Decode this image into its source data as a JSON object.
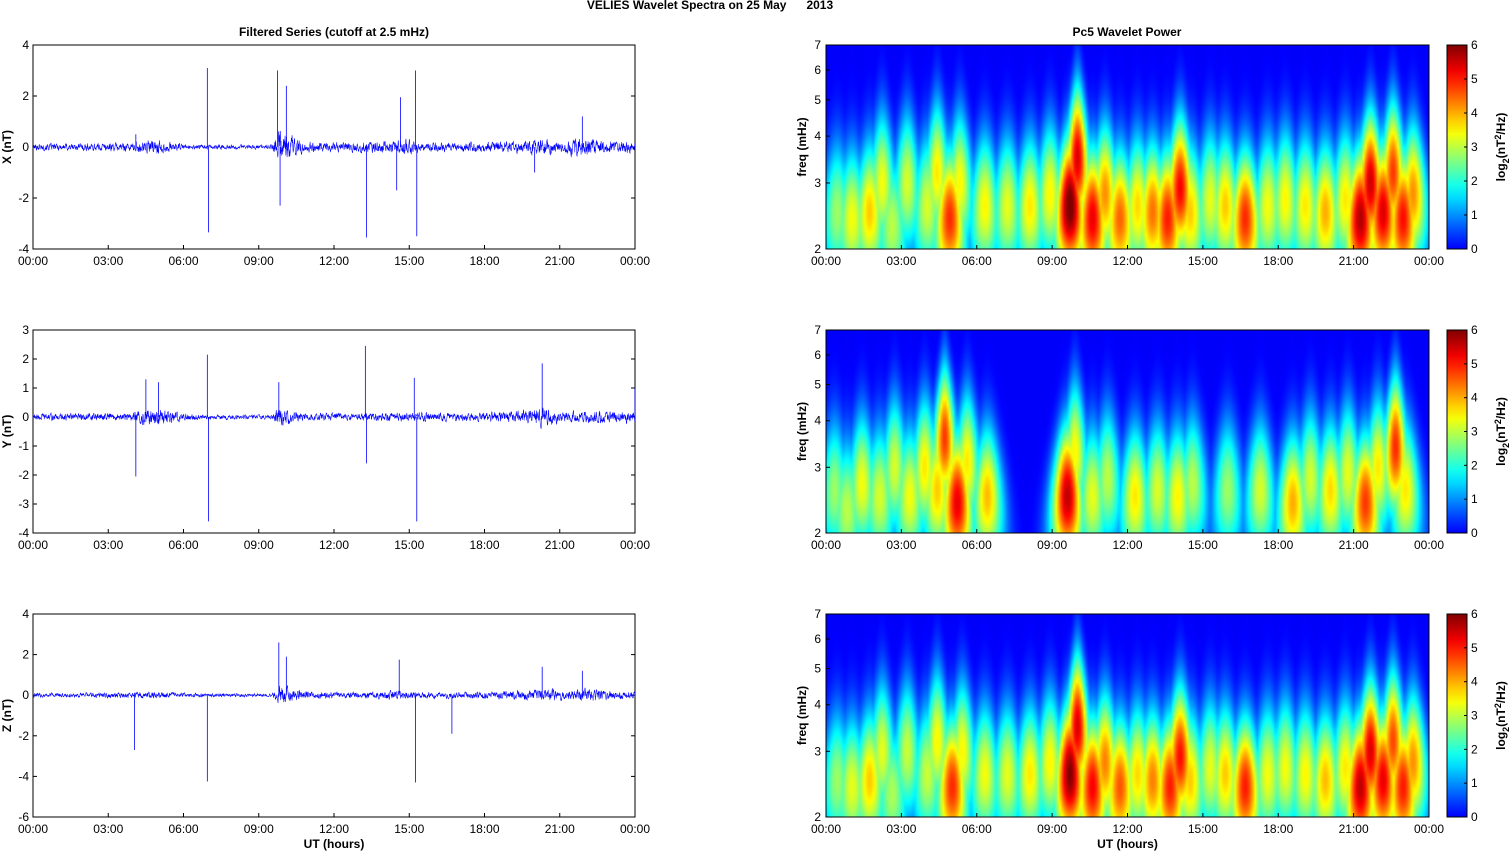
{
  "figure": {
    "title": "VELIES Wavelet Spectra on 25 May      2013",
    "left_title": "Filtered Series (cutoff at 2.5 mHz)",
    "right_title": "Pc5 Wavelet Power",
    "xlabel": "UT (hours)",
    "freq_label": "freq (mHz)",
    "colorbar_label": "log2(nT2/Hz)",
    "colorbar_label_parts": {
      "base": "log",
      "sub": "2",
      "open": "(nT",
      "sup": "2",
      "close": "/Hz)"
    },
    "colors": {
      "trace": "#0000ff",
      "background": "#00008f"
    }
  },
  "chart_data": [
    {
      "type": "line",
      "title": "Filtered Series (cutoff at 2.5 mHz)",
      "ylabel": "X (nT)",
      "xlabel": "",
      "x_ticks": [
        "00:00",
        "03:00",
        "06:00",
        "09:00",
        "12:00",
        "15:00",
        "18:00",
        "21:00",
        "00:00"
      ],
      "xlim": [
        0,
        24
      ],
      "ylim": [
        -4,
        4
      ],
      "y_ticks": [
        -4,
        -2,
        0,
        2,
        4
      ],
      "base_amplitude": 0.15,
      "activity": [
        [
          0,
          0.9
        ],
        [
          4,
          1.2
        ],
        [
          4.8,
          2.2
        ],
        [
          5.5,
          1.2
        ],
        [
          6.3,
          0.6
        ],
        [
          9.5,
          0.6
        ],
        [
          9.8,
          4.5
        ],
        [
          10.2,
          3.5
        ],
        [
          10.8,
          1.4
        ],
        [
          12,
          1.2
        ],
        [
          14,
          1.6
        ],
        [
          14.8,
          2.2
        ],
        [
          15.5,
          1.2
        ],
        [
          18,
          1.3
        ],
        [
          19.5,
          1.6
        ],
        [
          20.3,
          2.3
        ],
        [
          21,
          1.5
        ],
        [
          21.8,
          2.8
        ],
        [
          22.5,
          1.8
        ],
        [
          23.5,
          1.6
        ],
        [
          24,
          1.5
        ]
      ],
      "spikes": [
        [
          4.1,
          0.5
        ],
        [
          6.95,
          3.1
        ],
        [
          7.0,
          -3.35
        ],
        [
          9.75,
          3.0
        ],
        [
          9.85,
          -2.3
        ],
        [
          10.1,
          2.4
        ],
        [
          13.3,
          -3.55
        ],
        [
          14.5,
          -1.7
        ],
        [
          14.65,
          1.95
        ],
        [
          15.25,
          3.0
        ],
        [
          15.3,
          -3.5
        ],
        [
          20,
          -1.0
        ],
        [
          21.9,
          1.2
        ]
      ]
    },
    {
      "type": "line",
      "title": "",
      "ylabel": "Y (nT)",
      "xlabel": "",
      "x_ticks": [
        "00:00",
        "03:00",
        "06:00",
        "09:00",
        "12:00",
        "15:00",
        "18:00",
        "21:00",
        "00:00"
      ],
      "xlim": [
        0,
        24
      ],
      "ylim": [
        -4,
        3
      ],
      "y_ticks": [
        -4,
        -3,
        -2,
        -1,
        0,
        1,
        2,
        3
      ],
      "base_amplitude": 0.12,
      "activity": [
        [
          0,
          1.0
        ],
        [
          3.8,
          1.1
        ],
        [
          4.5,
          2.5
        ],
        [
          5.2,
          2.2
        ],
        [
          6,
          1.2
        ],
        [
          6.6,
          0.7
        ],
        [
          9.5,
          0.6
        ],
        [
          9.8,
          2.8
        ],
        [
          10.3,
          1.8
        ],
        [
          11,
          1.0
        ],
        [
          13,
          1.2
        ],
        [
          15,
          1.4
        ],
        [
          17,
          1.1
        ],
        [
          19.5,
          1.8
        ],
        [
          20.3,
          2.8
        ],
        [
          21,
          1.5
        ],
        [
          22.5,
          1.8
        ],
        [
          24,
          1.6
        ]
      ],
      "spikes": [
        [
          4.1,
          -2.05
        ],
        [
          4.5,
          1.3
        ],
        [
          5.0,
          1.2
        ],
        [
          6.95,
          2.15
        ],
        [
          7.0,
          -3.6
        ],
        [
          9.8,
          1.2
        ],
        [
          13.25,
          2.45
        ],
        [
          13.3,
          -1.6
        ],
        [
          15.2,
          1.35
        ],
        [
          15.3,
          -3.6
        ],
        [
          20.3,
          1.85
        ],
        [
          24,
          1.0
        ]
      ]
    },
    {
      "type": "line",
      "title": "",
      "ylabel": "Z (nT)",
      "xlabel": "UT (hours)",
      "x_ticks": [
        "00:00",
        "03:00",
        "06:00",
        "09:00",
        "12:00",
        "15:00",
        "18:00",
        "21:00",
        "00:00"
      ],
      "xlim": [
        0,
        24
      ],
      "ylim": [
        -6,
        4
      ],
      "y_ticks": [
        -6,
        -4,
        -2,
        0,
        2,
        4
      ],
      "base_amplitude": 0.12,
      "activity": [
        [
          0,
          1.0
        ],
        [
          4,
          1.2
        ],
        [
          5,
          1.5
        ],
        [
          6.5,
          0.8
        ],
        [
          9.5,
          0.7
        ],
        [
          9.85,
          4.0
        ],
        [
          10.3,
          2.8
        ],
        [
          11,
          1.4
        ],
        [
          13,
          1.2
        ],
        [
          14.5,
          2.0
        ],
        [
          15.5,
          1.2
        ],
        [
          17,
          1.3
        ],
        [
          19.5,
          1.8
        ],
        [
          20.5,
          2.6
        ],
        [
          21.5,
          1.8
        ],
        [
          22,
          3.0
        ],
        [
          22.8,
          2.0
        ],
        [
          24,
          1.6
        ]
      ],
      "spikes": [
        [
          4.05,
          -2.7
        ],
        [
          6.95,
          -4.25
        ],
        [
          9.8,
          2.6
        ],
        [
          10.1,
          1.9
        ],
        [
          14.6,
          1.75
        ],
        [
          15.25,
          -4.3
        ],
        [
          16.7,
          -1.9
        ],
        [
          20.3,
          1.4
        ],
        [
          21.9,
          1.2
        ]
      ]
    },
    {
      "type": "heatmap",
      "title": "Pc5 Wavelet Power",
      "ylabel": "freq (mHz)",
      "xlabel": "",
      "x_ticks": [
        "00:00",
        "03:00",
        "06:00",
        "09:00",
        "12:00",
        "15:00",
        "18:00",
        "21:00",
        "00:00"
      ],
      "xlim": [
        0,
        24
      ],
      "ylim": [
        2,
        7
      ],
      "y_scale": "log",
      "y_ticks": [
        2,
        3,
        4,
        5,
        6,
        7
      ],
      "colorbar": {
        "label": "log2(nT2/Hz)",
        "min": 0,
        "max": 6,
        "ticks": [
          0,
          1,
          2,
          3,
          4,
          5,
          6
        ],
        "colormap": "jet"
      },
      "blobs": [
        [
          0.4,
          2.5,
          2.8
        ],
        [
          1.0,
          2.4,
          3.4
        ],
        [
          1.7,
          2.5,
          3.8
        ],
        [
          2.2,
          3.0,
          3.4
        ],
        [
          2.6,
          2.3,
          3.0
        ],
        [
          3.2,
          3.0,
          3.2
        ],
        [
          4.0,
          2.6,
          3.2
        ],
        [
          4.4,
          3.2,
          3.6
        ],
        [
          4.9,
          2.4,
          4.9
        ],
        [
          5.3,
          3.0,
          3.5
        ],
        [
          6.3,
          2.6,
          3.5
        ],
        [
          7.2,
          2.6,
          3.3
        ],
        [
          8.1,
          2.6,
          3.6
        ],
        [
          8.9,
          2.8,
          3.5
        ],
        [
          9.7,
          2.6,
          6.2
        ],
        [
          10.0,
          3.5,
          5.4
        ],
        [
          10.6,
          2.4,
          5.3
        ],
        [
          11.1,
          2.8,
          4.2
        ],
        [
          11.7,
          2.4,
          4.5
        ],
        [
          12.4,
          2.6,
          3.7
        ],
        [
          13.0,
          2.5,
          4.4
        ],
        [
          13.6,
          2.4,
          5.0
        ],
        [
          14.1,
          2.9,
          5.2
        ],
        [
          14.5,
          2.5,
          3.8
        ],
        [
          15.3,
          2.7,
          3.3
        ],
        [
          15.9,
          2.6,
          3.8
        ],
        [
          16.7,
          2.4,
          4.9
        ],
        [
          17.6,
          2.6,
          3.4
        ],
        [
          18.3,
          2.7,
          3.5
        ],
        [
          19.1,
          2.6,
          3.6
        ],
        [
          19.9,
          2.5,
          4.0
        ],
        [
          20.7,
          2.7,
          3.6
        ],
        [
          21.3,
          2.4,
          5.7
        ],
        [
          21.7,
          3.0,
          5.5
        ],
        [
          22.2,
          2.5,
          5.4
        ],
        [
          22.6,
          3.2,
          4.8
        ],
        [
          23.0,
          2.4,
          5.1
        ],
        [
          23.4,
          2.8,
          4.2
        ]
      ]
    },
    {
      "type": "heatmap",
      "title": "",
      "ylabel": "freq (mHz)",
      "xlabel": "",
      "x_ticks": [
        "00:00",
        "03:00",
        "06:00",
        "09:00",
        "12:00",
        "15:00",
        "18:00",
        "21:00",
        "00:00"
      ],
      "xlim": [
        0,
        24
      ],
      "ylim": [
        2,
        7
      ],
      "y_scale": "log",
      "y_ticks": [
        2,
        3,
        4,
        5,
        6,
        7
      ],
      "colorbar": {
        "label": "log2(nT2/Hz)",
        "min": 0,
        "max": 6,
        "ticks": [
          0,
          1,
          2,
          3,
          4,
          5,
          6
        ],
        "colormap": "jet"
      },
      "blobs": [
        [
          0.3,
          2.6,
          2.8
        ],
        [
          0.8,
          2.3,
          3.0
        ],
        [
          1.4,
          2.7,
          3.4
        ],
        [
          2.1,
          2.5,
          3.2
        ],
        [
          2.7,
          3.0,
          3.2
        ],
        [
          3.3,
          2.5,
          3.4
        ],
        [
          3.9,
          3.0,
          3.6
        ],
        [
          4.4,
          2.6,
          3.8
        ],
        [
          4.7,
          3.6,
          4.8
        ],
        [
          5.2,
          2.4,
          5.3
        ],
        [
          5.6,
          3.1,
          3.6
        ],
        [
          6.4,
          2.5,
          3.9
        ],
        [
          9.6,
          2.5,
          5.6
        ],
        [
          9.9,
          3.3,
          3.5
        ],
        [
          10.6,
          2.5,
          3.3
        ],
        [
          11.2,
          2.8,
          3.0
        ],
        [
          12.3,
          2.5,
          3.6
        ],
        [
          13.2,
          2.6,
          3.2
        ],
        [
          14.0,
          2.5,
          3.5
        ],
        [
          14.6,
          2.7,
          3.0
        ],
        [
          16.0,
          2.6,
          2.8
        ],
        [
          17.3,
          2.6,
          3.2
        ],
        [
          18.6,
          2.4,
          4.0
        ],
        [
          19.3,
          2.8,
          3.2
        ],
        [
          20.1,
          2.6,
          3.7
        ],
        [
          20.8,
          2.9,
          3.3
        ],
        [
          21.5,
          2.4,
          4.8
        ],
        [
          22.0,
          3.0,
          3.6
        ],
        [
          22.7,
          3.4,
          4.9
        ],
        [
          23.1,
          2.6,
          3.6
        ]
      ]
    },
    {
      "type": "heatmap",
      "title": "",
      "ylabel": "freq (mHz)",
      "xlabel": "UT (hours)",
      "x_ticks": [
        "00:00",
        "03:00",
        "06:00",
        "09:00",
        "12:00",
        "15:00",
        "18:00",
        "21:00",
        "00:00"
      ],
      "xlim": [
        0,
        24
      ],
      "ylim": [
        2,
        7
      ],
      "y_scale": "log",
      "y_ticks": [
        2,
        3,
        4,
        5,
        6,
        7
      ],
      "colorbar": {
        "label": "log2(nT2/Hz)",
        "min": 0,
        "max": 6,
        "ticks": [
          0,
          1,
          2,
          3,
          4,
          5,
          6
        ],
        "colormap": "jet"
      },
      "blobs": [
        [
          0.4,
          2.5,
          2.8
        ],
        [
          1.0,
          2.4,
          3.3
        ],
        [
          1.7,
          2.5,
          3.8
        ],
        [
          2.2,
          3.0,
          3.3
        ],
        [
          2.6,
          2.3,
          2.9
        ],
        [
          3.2,
          3.0,
          3.1
        ],
        [
          4.0,
          2.6,
          3.1
        ],
        [
          4.4,
          3.2,
          3.5
        ],
        [
          5.0,
          2.4,
          4.9
        ],
        [
          5.4,
          3.0,
          3.5
        ],
        [
          6.3,
          2.6,
          3.4
        ],
        [
          7.2,
          2.6,
          3.3
        ],
        [
          8.1,
          2.6,
          3.6
        ],
        [
          8.9,
          2.8,
          3.5
        ],
        [
          9.7,
          2.6,
          6.0
        ],
        [
          10.0,
          3.5,
          5.4
        ],
        [
          10.6,
          2.4,
          5.2
        ],
        [
          11.1,
          2.8,
          4.3
        ],
        [
          11.7,
          2.4,
          4.6
        ],
        [
          12.4,
          2.6,
          3.7
        ],
        [
          13.0,
          2.5,
          4.3
        ],
        [
          13.7,
          2.4,
          5.0
        ],
        [
          14.1,
          2.9,
          5.1
        ],
        [
          14.5,
          2.5,
          3.8
        ],
        [
          15.3,
          2.7,
          3.3
        ],
        [
          15.9,
          2.6,
          3.8
        ],
        [
          16.7,
          2.4,
          5.0
        ],
        [
          17.6,
          2.6,
          3.4
        ],
        [
          18.3,
          2.7,
          3.4
        ],
        [
          19.1,
          2.6,
          3.5
        ],
        [
          19.9,
          2.5,
          3.9
        ],
        [
          20.7,
          2.7,
          3.6
        ],
        [
          21.3,
          2.4,
          5.6
        ],
        [
          21.7,
          3.0,
          5.4
        ],
        [
          22.2,
          2.5,
          5.3
        ],
        [
          22.6,
          3.2,
          4.7
        ],
        [
          23.0,
          2.4,
          5.0
        ],
        [
          23.4,
          2.8,
          4.2
        ]
      ]
    }
  ]
}
